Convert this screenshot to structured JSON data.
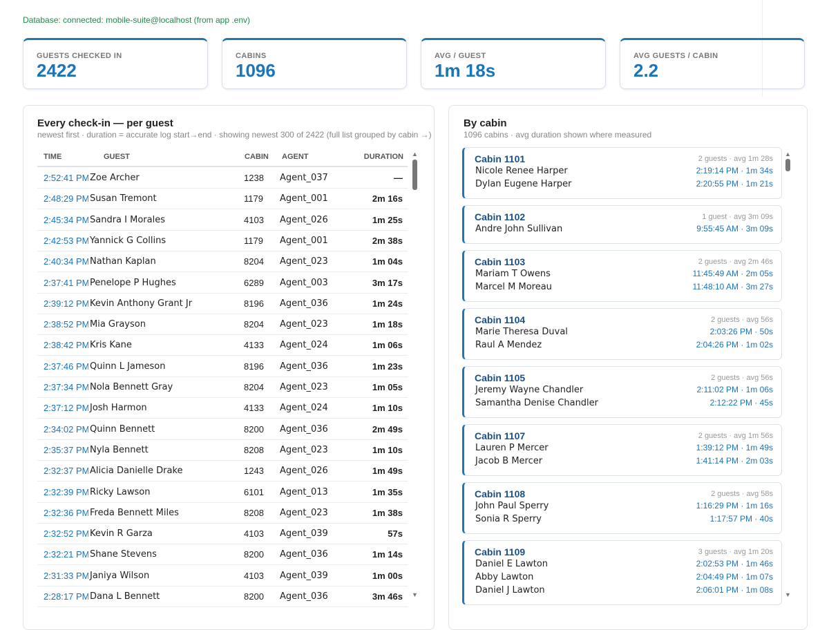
{
  "status": "Database: connected: mobile-suite@localhost (from app .env)",
  "kpis": [
    {
      "label": "GUESTS CHECKED IN",
      "value": 2422
    },
    {
      "label": "CABINS",
      "value": 1096
    },
    {
      "label": "AVG / GUEST",
      "value": "1m 18s"
    },
    {
      "label": "AVG GUESTS / CABIN",
      "value": 2.2
    }
  ],
  "checkins": {
    "title": "Every check-in — per guest",
    "subtitle": "newest first · duration = accurate log start→end · showing newest 300 of 2422 (full list grouped by cabin →)",
    "columns": [
      "TIME",
      "GUEST",
      "CABIN",
      "AGENT",
      "DURATION"
    ],
    "rows": [
      [
        "2:52:41 PM",
        "Zoe Archer",
        "1238",
        "Agent_037",
        "—"
      ],
      [
        "2:48:29 PM",
        "Susan Tremont",
        "1179",
        "Agent_001",
        "2m 16s"
      ],
      [
        "2:45:34 PM",
        "Sandra I Morales",
        "4103",
        "Agent_026",
        "1m 25s"
      ],
      [
        "2:42:53 PM",
        "Yannick G Collins",
        "1179",
        "Agent_001",
        "2m 38s"
      ],
      [
        "2:40:34 PM",
        "Nathan Kaplan",
        "8204",
        "Agent_023",
        "1m 04s"
      ],
      [
        "2:37:41 PM",
        "Penelope P Hughes",
        "6289",
        "Agent_003",
        "3m 17s"
      ],
      [
        "2:39:12 PM",
        "Kevin Anthony Grant Jr",
        "8196",
        "Agent_036",
        "1m 24s"
      ],
      [
        "2:38:52 PM",
        "Mia Grayson",
        "8204",
        "Agent_023",
        "1m 18s"
      ],
      [
        "2:38:42 PM",
        "Kris Kane",
        "4133",
        "Agent_024",
        "1m 06s"
      ],
      [
        "2:37:46 PM",
        "Quinn L Jameson",
        "8196",
        "Agent_036",
        "1m 23s"
      ],
      [
        "2:37:34 PM",
        "Nola Bennett Gray",
        "8204",
        "Agent_023",
        "1m 05s"
      ],
      [
        "2:37:12 PM",
        "Josh Harmon",
        "4133",
        "Agent_024",
        "1m 10s"
      ],
      [
        "2:34:02 PM",
        "Quinn Bennett",
        "8200",
        "Agent_036",
        "2m 49s"
      ],
      [
        "2:35:37 PM",
        "Nyla Bennett",
        "8208",
        "Agent_023",
        "1m 10s"
      ],
      [
        "2:32:37 PM",
        "Alicia Danielle Drake",
        "1243",
        "Agent_026",
        "1m 49s"
      ],
      [
        "2:32:39 PM",
        "Ricky Lawson",
        "6101",
        "Agent_013",
        "1m 35s"
      ],
      [
        "2:32:36 PM",
        "Freda Bennett Miles",
        "8208",
        "Agent_023",
        "1m 38s"
      ],
      [
        "2:32:52 PM",
        "Kevin R Garza",
        "4103",
        "Agent_039",
        "57s"
      ],
      [
        "2:32:21 PM",
        "Shane Stevens",
        "8200",
        "Agent_036",
        "1m 14s"
      ],
      [
        "2:31:33 PM",
        "Janiya Wilson",
        "4103",
        "Agent_039",
        "1m 00s"
      ],
      [
        "2:28:17 PM",
        "Dana L Bennett",
        "8200",
        "Agent_036",
        "3m 46s"
      ]
    ]
  },
  "cabins": {
    "title": "By cabin",
    "subtitle": "1096 cabins · avg duration shown where measured",
    "groups": [
      {
        "name": "Cabin 1101",
        "summary": "2 guests · avg 1m 28s",
        "guests": [
          {
            "name": "Nicole Renee Harper",
            "detail": "2:19:14 PM · 1m 34s"
          },
          {
            "name": "Dylan Eugene Harper",
            "detail": "2:20:55 PM · 1m 21s"
          }
        ]
      },
      {
        "name": "Cabin 1102",
        "summary": "1 guest · avg 3m 09s",
        "guests": [
          {
            "name": "Andre John Sullivan",
            "detail": "9:55:45 AM · 3m 09s"
          }
        ]
      },
      {
        "name": "Cabin 1103",
        "summary": "2 guests · avg 2m 46s",
        "guests": [
          {
            "name": "Mariam T Owens",
            "detail": "11:45:49 AM · 2m 05s"
          },
          {
            "name": "Marcel M Moreau",
            "detail": "11:48:10 AM · 3m 27s"
          }
        ]
      },
      {
        "name": "Cabin 1104",
        "summary": "2 guests · avg 56s",
        "guests": [
          {
            "name": "Marie Theresa Duval",
            "detail": "2:03:26 PM · 50s"
          },
          {
            "name": "Raul A Mendez",
            "detail": "2:04:26 PM · 1m 02s"
          }
        ]
      },
      {
        "name": "Cabin 1105",
        "summary": "2 guests · avg 56s",
        "guests": [
          {
            "name": "Jeremy Wayne Chandler",
            "detail": "2:11:02 PM · 1m 06s"
          },
          {
            "name": "Samantha Denise Chandler",
            "detail": "2:12:22 PM · 45s"
          }
        ]
      },
      {
        "name": "Cabin 1107",
        "summary": "2 guests · avg 1m 56s",
        "guests": [
          {
            "name": "Lauren P Mercer",
            "detail": "1:39:12 PM · 1m 49s"
          },
          {
            "name": "Jacob B Mercer",
            "detail": "1:41:14 PM · 2m 03s"
          }
        ]
      },
      {
        "name": "Cabin 1108",
        "summary": "2 guests · avg 58s",
        "guests": [
          {
            "name": "John Paul Sperry",
            "detail": "1:16:29 PM · 1m 16s"
          },
          {
            "name": "Sonia R Sperry",
            "detail": "1:17:57 PM · 40s"
          }
        ]
      },
      {
        "name": "Cabin 1109",
        "summary": "3 guests · avg 1m 20s",
        "guests": [
          {
            "name": "Daniel E Lawton",
            "detail": "2:02:53 PM · 1m 46s"
          },
          {
            "name": "Abby Lawton",
            "detail": "2:04:49 PM · 1m 07s"
          },
          {
            "name": "Daniel J Lawton",
            "detail": "2:06:01 PM · 1m 08s"
          }
        ]
      }
    ]
  }
}
